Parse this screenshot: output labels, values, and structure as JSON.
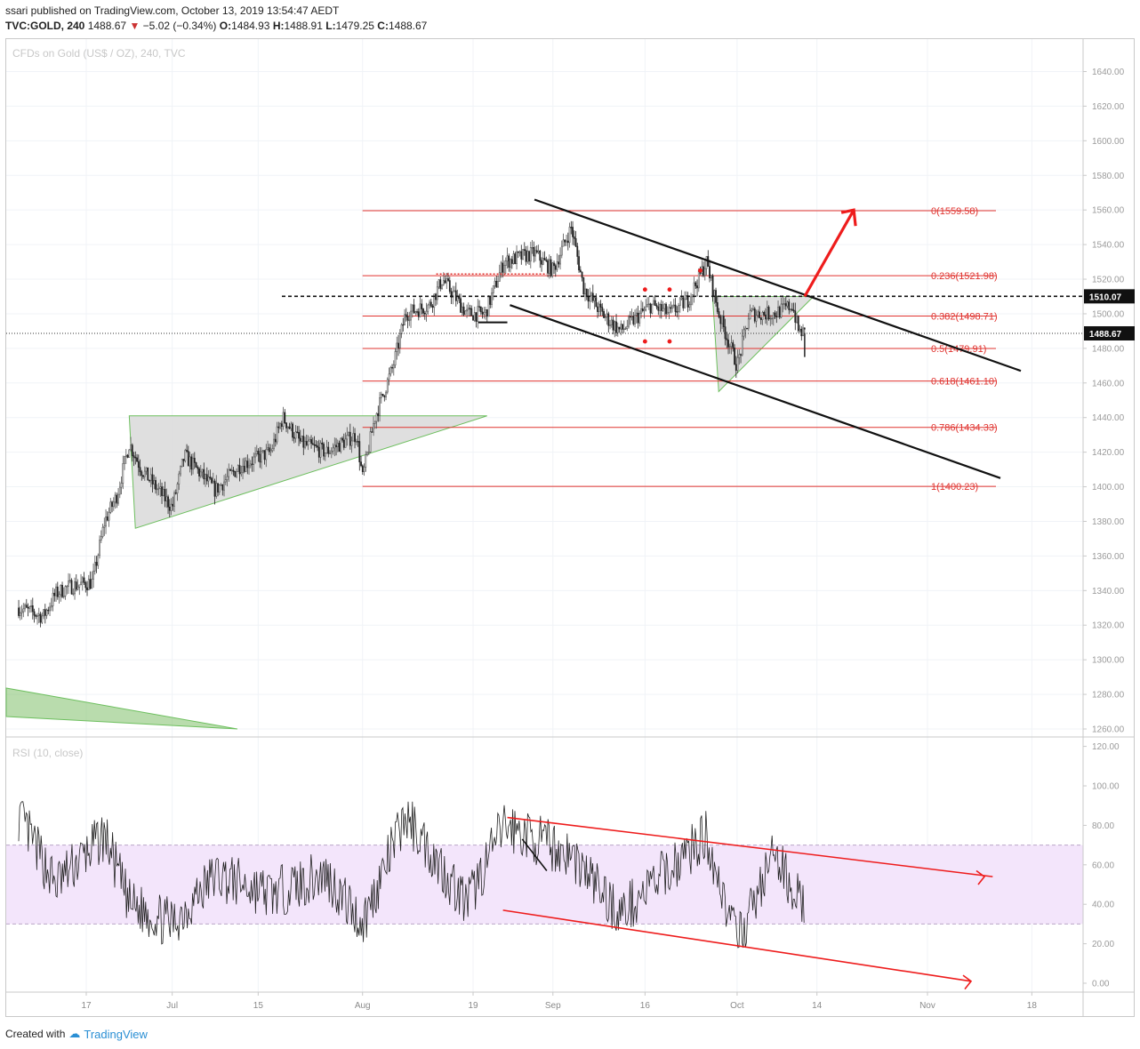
{
  "header": {
    "published": "ssari published on TradingView.com, October 13, 2019 13:54:47 AEDT",
    "symbol": "TVC:GOLD, 240",
    "last": "1488.67",
    "change": "−5.02 (−0.34%)",
    "ohlc": {
      "o_label": "O:",
      "o": "1484.93",
      "h_label": "H:",
      "h": "1488.91",
      "l_label": "L:",
      "l": "1479.25",
      "c_label": "C:",
      "c": "1488.67"
    }
  },
  "watermarks": {
    "main": "CFDs on Gold (US$ / OZ), 240, TVC",
    "rsi": "RSI (10, close)"
  },
  "price_axis": {
    "ticks": [
      "1640.00",
      "1620.00",
      "1600.00",
      "1580.00",
      "1560.00",
      "1540.00",
      "1520.00",
      "1500.00",
      "1480.00",
      "1460.00",
      "1440.00",
      "1420.00",
      "1400.00",
      "1380.00",
      "1360.00",
      "1340.00",
      "1320.00",
      "1300.00",
      "1280.00",
      "1260.00"
    ],
    "tick_values": [
      1640,
      1620,
      1600,
      1580,
      1560,
      1540,
      1520,
      1500,
      1480,
      1460,
      1440,
      1420,
      1400,
      1380,
      1360,
      1340,
      1320,
      1300,
      1280,
      1260
    ],
    "label_last": "1488.67",
    "label_level": "1510.07"
  },
  "rsi_axis": {
    "ticks": [
      "120.00",
      "100.00",
      "80.00",
      "60.00",
      "40.00",
      "20.00",
      "0.00"
    ],
    "tick_values": [
      120,
      100,
      80,
      60,
      40,
      20,
      0
    ],
    "band": [
      30,
      70
    ]
  },
  "time_axis": {
    "labels": [
      "17",
      "Jul",
      "15",
      "Aug",
      "19",
      "Sep",
      "16",
      "Oct",
      "14",
      "Nov",
      "18"
    ]
  },
  "fib": [
    {
      "label": "0(1559.58)",
      "value": 1559.58
    },
    {
      "label": "0.236(1521.98)",
      "value": 1521.98
    },
    {
      "label": "0.382(1498.71)",
      "value": 1498.71
    },
    {
      "label": "0.5(1479.91)",
      "value": 1479.91
    },
    {
      "label": "0.618(1461.10)",
      "value": 1461.1
    },
    {
      "label": "0.786(1434.33)",
      "value": 1434.33
    },
    {
      "label": "1(1400.23)",
      "value": 1400.23
    }
  ],
  "footer": {
    "created": "Created with",
    "brand": "TradingView"
  },
  "colors": {
    "up": "#555555",
    "down": "#222222",
    "fib": "#e0332f",
    "triangle_fill": "#dcdcdc",
    "triangle_edge": "#6dbf5e",
    "rsi_band": "#f3e5fb",
    "rsi_line": "#222222",
    "arrow": "#ee1c1c"
  },
  "chart_data": {
    "type": "candlestick",
    "title": "CFDs on Gold (US$ / OZ), 240, TVC",
    "timeframe": "240",
    "price_range": [
      1255,
      1655
    ],
    "anchor_points": [
      {
        "date": "Jun 6",
        "price": 1330
      },
      {
        "date": "Jun 10",
        "price": 1325
      },
      {
        "date": "Jun 12",
        "price": 1338
      },
      {
        "date": "Jun 14",
        "price": 1342
      },
      {
        "date": "Jun 18",
        "price": 1345
      },
      {
        "date": "Jun 20",
        "price": 1380
      },
      {
        "date": "Jun 22",
        "price": 1395
      },
      {
        "date": "Jun 24",
        "price": 1425
      },
      {
        "date": "Jun 26",
        "price": 1410
      },
      {
        "date": "Jul 1",
        "price": 1388
      },
      {
        "date": "Jul 3",
        "price": 1418
      },
      {
        "date": "Jul 8",
        "price": 1398
      },
      {
        "date": "Jul 12",
        "price": 1412
      },
      {
        "date": "Jul 17",
        "price": 1420
      },
      {
        "date": "Jul 19",
        "price": 1440
      },
      {
        "date": "Jul 22",
        "price": 1425
      },
      {
        "date": "Jul 26",
        "price": 1420
      },
      {
        "date": "Jul 31",
        "price": 1430
      },
      {
        "date": "Aug 1",
        "price": 1405
      },
      {
        "date": "Aug 3",
        "price": 1440
      },
      {
        "date": "Aug 6",
        "price": 1470
      },
      {
        "date": "Aug 8",
        "price": 1500
      },
      {
        "date": "Aug 12",
        "price": 1505
      },
      {
        "date": "Aug 14",
        "price": 1520
      },
      {
        "date": "Aug 18",
        "price": 1500
      },
      {
        "date": "Aug 21",
        "price": 1500
      },
      {
        "date": "Aug 24",
        "price": 1530
      },
      {
        "date": "Aug 29",
        "price": 1535
      },
      {
        "date": "Sep 1",
        "price": 1525
      },
      {
        "date": "Sep 4",
        "price": 1550
      },
      {
        "date": "Sep 6",
        "price": 1515
      },
      {
        "date": "Sep 9",
        "price": 1500
      },
      {
        "date": "Sep 12",
        "price": 1490
      },
      {
        "date": "Sep 17",
        "price": 1505
      },
      {
        "date": "Sep 20",
        "price": 1500
      },
      {
        "date": "Sep 23",
        "price": 1508
      },
      {
        "date": "Sep 26",
        "price": 1530
      },
      {
        "date": "Sep 28",
        "price": 1500
      },
      {
        "date": "Oct 1",
        "price": 1470
      },
      {
        "date": "Oct 3",
        "price": 1500
      },
      {
        "date": "Oct 7",
        "price": 1500
      },
      {
        "date": "Oct 10",
        "price": 1505
      },
      {
        "date": "Oct 11",
        "price": 1490
      },
      {
        "date": "Oct 12",
        "price": 1488.67
      }
    ],
    "rsi_anchor_points": [
      {
        "date": "Jun 6",
        "value": 85
      },
      {
        "date": "Jun 12",
        "value": 50
      },
      {
        "date": "Jun 20",
        "value": 75
      },
      {
        "date": "Jun 24",
        "value": 40
      },
      {
        "date": "Jul 1",
        "value": 30
      },
      {
        "date": "Jul 8",
        "value": 55
      },
      {
        "date": "Jul 17",
        "value": 45
      },
      {
        "date": "Jul 26",
        "value": 55
      },
      {
        "date": "Aug 1",
        "value": 30
      },
      {
        "date": "Aug 8",
        "value": 85
      },
      {
        "date": "Aug 18",
        "value": 40
      },
      {
        "date": "Aug 24",
        "value": 80
      },
      {
        "date": "Sep 4",
        "value": 65
      },
      {
        "date": "Sep 12",
        "value": 35
      },
      {
        "date": "Sep 26",
        "value": 75
      },
      {
        "date": "Oct 1",
        "value": 20
      },
      {
        "date": "Oct 7",
        "value": 65
      },
      {
        "date": "Oct 12",
        "value": 38
      }
    ]
  }
}
